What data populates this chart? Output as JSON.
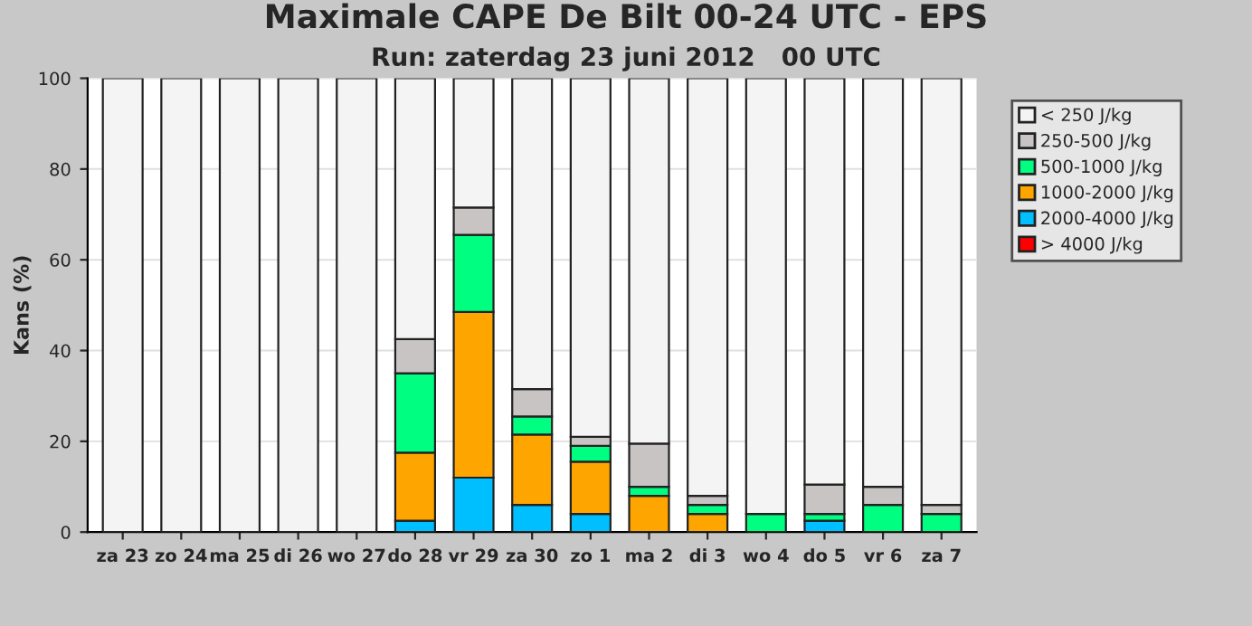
{
  "chart_data": {
    "type": "bar",
    "title": "Maximale CAPE De Bilt 00-24 UTC - EPS",
    "subtitle": "Run: zaterdag 23 juni 2012   00 UTC",
    "ylabel": "Kans (%)",
    "categories": [
      "za 23",
      "zo 24",
      "ma 25",
      "di 26",
      "wo 27",
      "do 28",
      "vr 29",
      "za 30",
      "zo 1",
      "ma 2",
      "di 3",
      "wo 4",
      "do 5",
      "vr 6",
      "za 7"
    ],
    "stacked": true,
    "series": [
      {
        "name": "> 4000 J/kg",
        "color": "#ff0000",
        "values": [
          0,
          0,
          0,
          0,
          0,
          0,
          0,
          0,
          0,
          0,
          0,
          0,
          0,
          0,
          0
        ]
      },
      {
        "name": "2000-4000 J/kg",
        "color": "#00bfff",
        "values": [
          0,
          0,
          0,
          0,
          0,
          2.5,
          12,
          6,
          4,
          0,
          0,
          0,
          2.5,
          0,
          0
        ]
      },
      {
        "name": "1000-2000 J/kg",
        "color": "#ffa500",
        "values": [
          0,
          0,
          0,
          0,
          0,
          15,
          36.5,
          15.5,
          11.5,
          8,
          4,
          0,
          0,
          0,
          0
        ]
      },
      {
        "name": "500-1000 J/kg",
        "color": "#00ff80",
        "values": [
          0,
          0,
          0,
          0,
          0,
          17.5,
          17,
          4,
          3.5,
          2,
          2,
          4,
          1.5,
          6,
          4
        ]
      },
      {
        "name": "250-500 J/kg",
        "color": "#c8c4c4",
        "values": [
          0,
          0,
          0,
          0,
          0,
          7.5,
          6,
          6,
          2,
          9.5,
          2,
          0,
          6.5,
          4,
          2
        ]
      },
      {
        "name": "< 250 J/kg",
        "color": "#f4f4f4",
        "values": [
          100,
          100,
          100,
          100,
          100,
          57.5,
          28.5,
          68.5,
          79,
          80.5,
          92,
          96,
          89.5,
          90,
          94
        ]
      }
    ],
    "ylim": [
      0,
      100
    ],
    "yticks": [
      0,
      20,
      40,
      60,
      80,
      100
    ],
    "grid": "y",
    "legend": "right"
  }
}
